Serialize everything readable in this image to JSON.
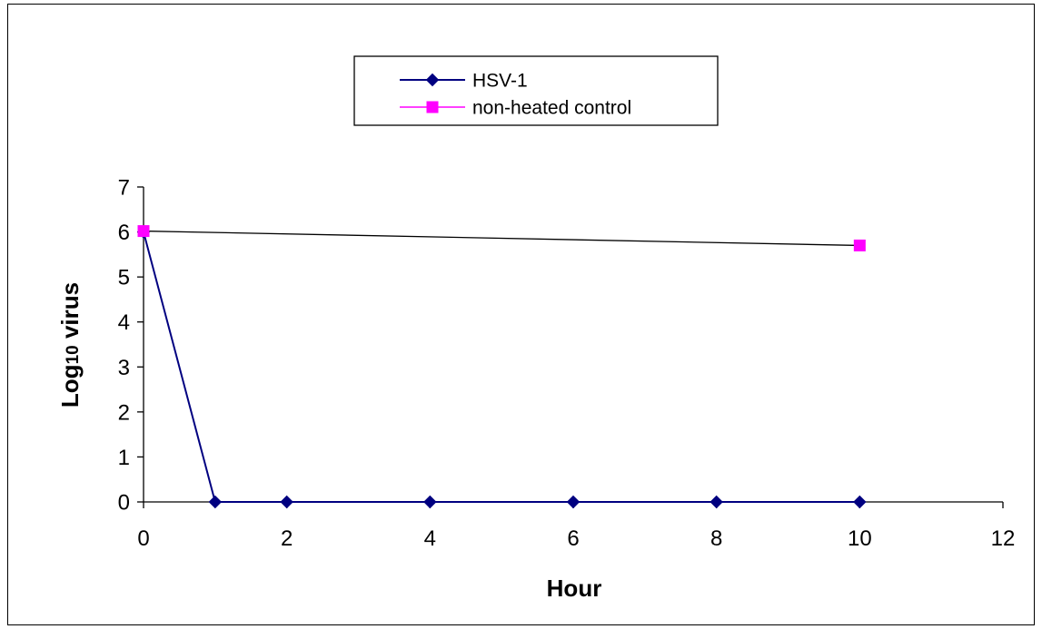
{
  "chart_data": {
    "type": "line",
    "title": "",
    "xlabel": "Hour",
    "ylabel_main": "Log",
    "ylabel_sub": "10",
    "ylabel_rest": " virus",
    "xlim": [
      0,
      12
    ],
    "ylim": [
      0,
      7
    ],
    "xticks": [
      0,
      2,
      4,
      6,
      8,
      10,
      12
    ],
    "yticks": [
      0,
      1,
      2,
      3,
      4,
      5,
      6,
      7
    ],
    "grid": false,
    "legend_position": "top-center",
    "series": [
      {
        "name": "HSV-1",
        "color": "#000080",
        "marker": "diamond",
        "x": [
          0,
          1,
          2,
          4,
          6,
          8,
          10
        ],
        "y": [
          6,
          0,
          0,
          0,
          0,
          0,
          0
        ]
      },
      {
        "name": "non-heated control",
        "color": "#FF00FF",
        "line_color": "#000000",
        "marker": "square",
        "x": [
          0,
          10
        ],
        "y": [
          6.02,
          5.7
        ]
      }
    ]
  }
}
